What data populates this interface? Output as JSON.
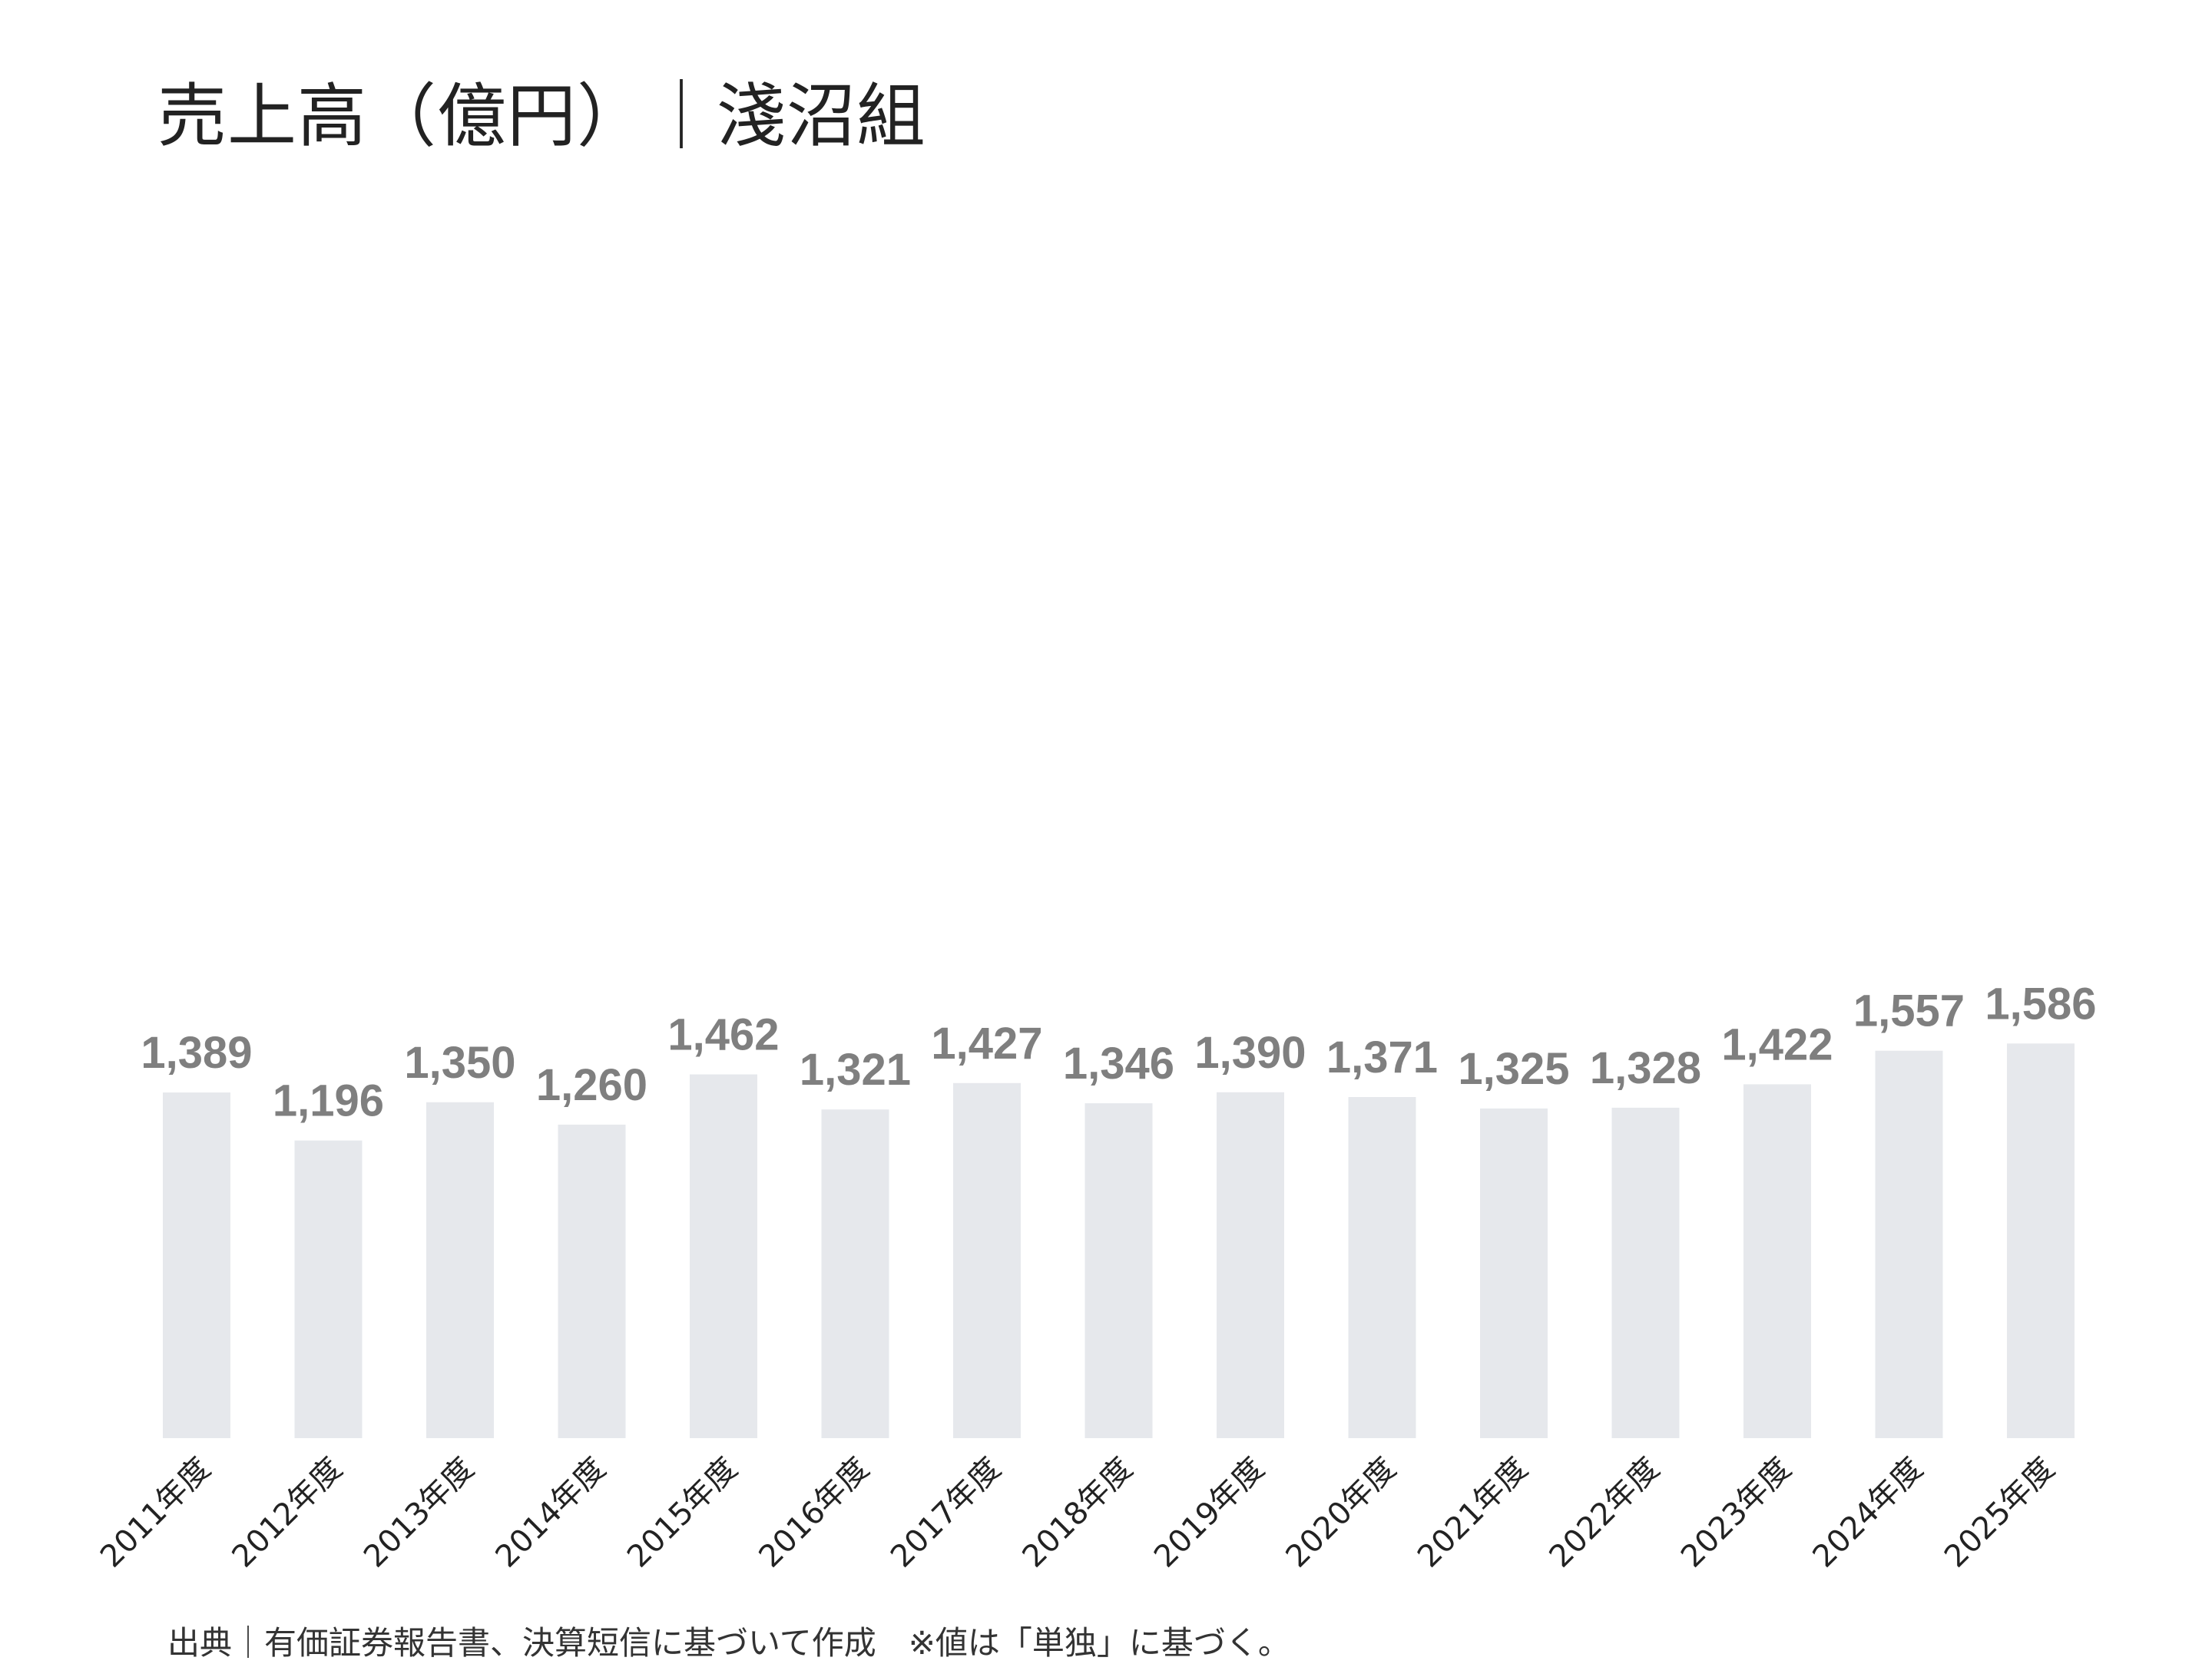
{
  "title": "売上高（億円）｜淺沼組",
  "source_note": "出典｜有価証券報告書、決算短信に基づいて作成　※値は「単独」に基づく。",
  "colors": {
    "bar": "#e6e8ec",
    "value_label": "#7f7f7f",
    "tick_label": "#222222",
    "title": "#222222"
  },
  "chart_data": {
    "type": "bar",
    "title": "売上高（億円）｜淺沼組",
    "xlabel": "",
    "ylabel": "",
    "categories": [
      "2011年度",
      "2012年度",
      "2013年度",
      "2014年度",
      "2015年度",
      "2016年度",
      "2017年度",
      "2018年度",
      "2019年度",
      "2020年度",
      "2021年度",
      "2022年度",
      "2023年度",
      "2024年度",
      "2025年度"
    ],
    "values": [
      1389,
      1196,
      1350,
      1260,
      1462,
      1321,
      1427,
      1346,
      1390,
      1371,
      1325,
      1328,
      1422,
      1557,
      1586
    ],
    "value_labels": [
      "1,389",
      "1,196",
      "1,350",
      "1,260",
      "1,462",
      "1,321",
      "1,427",
      "1,346",
      "1,390",
      "1,371",
      "1,325",
      "1,328",
      "1,422",
      "1,557",
      "1,586"
    ],
    "ylim": [
      0,
      5780
    ],
    "grid": false,
    "legend": "none",
    "tick_rotation_deg": -45
  }
}
